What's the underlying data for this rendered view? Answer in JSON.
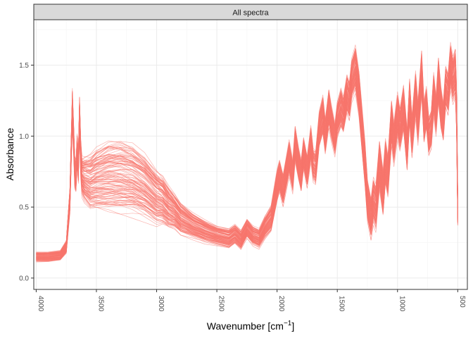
{
  "facet": {
    "strip_label": "All spectra"
  },
  "chart_data": {
    "type": "line",
    "title": "",
    "facet_label": "All spectra",
    "xlabel": "Wavenumber [cm",
    "xlabel_superscript": "−1",
    "xlabel_suffix": "]",
    "ylabel": "Absorbance",
    "xlim": [
      4020,
      420
    ],
    "ylim": [
      -0.08,
      1.82
    ],
    "x_reversed": true,
    "x_ticks": [
      4000,
      3500,
      3000,
      2500,
      2000,
      1500,
      1000,
      500
    ],
    "x_tick_labels": [
      "4000",
      "3500",
      "3000",
      "2500",
      "2000",
      "1500",
      "1000",
      "500"
    ],
    "y_ticks": [
      0.0,
      0.5,
      1.0,
      1.5
    ],
    "y_tick_labels": [
      "0.0",
      "0.5",
      "1.0",
      "1.5"
    ],
    "grid": true,
    "legend": "none",
    "series_color": "#F8766D",
    "series_count": 120,
    "representative_spectrum": {
      "x": [
        4000,
        3900,
        3800,
        3750,
        3720,
        3700,
        3690,
        3680,
        3670,
        3660,
        3650,
        3640,
        3630,
        3620,
        3600,
        3550,
        3500,
        3400,
        3300,
        3200,
        3100,
        3000,
        2950,
        2900,
        2850,
        2800,
        2700,
        2600,
        2500,
        2400,
        2350,
        2300,
        2250,
        2200,
        2150,
        2100,
        2050,
        2000,
        1980,
        1950,
        1900,
        1870,
        1850,
        1820,
        1800,
        1780,
        1750,
        1720,
        1700,
        1680,
        1650,
        1620,
        1600,
        1570,
        1550,
        1520,
        1500,
        1470,
        1450,
        1420,
        1400,
        1380,
        1350,
        1320,
        1300,
        1270,
        1250,
        1220,
        1200,
        1180,
        1150,
        1120,
        1100,
        1080,
        1050,
        1030,
        1000,
        980,
        950,
        920,
        900,
        880,
        850,
        830,
        800,
        780,
        760,
        740,
        720,
        700,
        680,
        660,
        640,
        620,
        600,
        580,
        560,
        540,
        520,
        510,
        500
      ],
      "y": [
        0.15,
        0.15,
        0.16,
        0.22,
        0.55,
        1.2,
        1.0,
        0.75,
        0.72,
        0.9,
        0.78,
        1.15,
        0.85,
        0.72,
        0.7,
        0.68,
        0.7,
        0.72,
        0.72,
        0.7,
        0.65,
        0.57,
        0.55,
        0.5,
        0.47,
        0.42,
        0.37,
        0.33,
        0.3,
        0.28,
        0.31,
        0.27,
        0.35,
        0.3,
        0.28,
        0.36,
        0.42,
        0.65,
        0.72,
        0.62,
        0.85,
        0.72,
        0.95,
        0.8,
        0.72,
        0.88,
        0.75,
        0.95,
        0.8,
        0.78,
        1.05,
        1.15,
        1.0,
        1.2,
        1.1,
        0.98,
        1.12,
        1.2,
        1.15,
        1.3,
        1.25,
        1.4,
        1.48,
        1.3,
        1.1,
        0.8,
        0.55,
        0.42,
        0.55,
        0.5,
        0.8,
        0.6,
        0.82,
        0.72,
        1.1,
        0.95,
        1.15,
        1.05,
        1.2,
        0.9,
        1.25,
        1.0,
        1.3,
        1.1,
        1.45,
        1.1,
        1.2,
        1.0,
        1.05,
        1.3,
        1.15,
        1.4,
        1.2,
        1.1,
        1.35,
        1.3,
        1.5,
        1.4,
        1.45,
        1.2,
        0.5
      ],
      "spread_y": [
        0.03,
        0.03,
        0.03,
        0.04,
        0.08,
        0.12,
        0.1,
        0.1,
        0.1,
        0.1,
        0.1,
        0.12,
        0.12,
        0.12,
        0.14,
        0.17,
        0.19,
        0.22,
        0.23,
        0.22,
        0.2,
        0.17,
        0.15,
        0.13,
        0.11,
        0.1,
        0.08,
        0.07,
        0.06,
        0.06,
        0.06,
        0.06,
        0.06,
        0.06,
        0.06,
        0.07,
        0.08,
        0.1,
        0.1,
        0.1,
        0.11,
        0.1,
        0.11,
        0.1,
        0.1,
        0.1,
        0.1,
        0.11,
        0.1,
        0.1,
        0.11,
        0.12,
        0.11,
        0.12,
        0.11,
        0.1,
        0.11,
        0.12,
        0.11,
        0.12,
        0.12,
        0.13,
        0.14,
        0.14,
        0.14,
        0.14,
        0.13,
        0.13,
        0.14,
        0.14,
        0.15,
        0.14,
        0.14,
        0.13,
        0.14,
        0.13,
        0.14,
        0.13,
        0.14,
        0.13,
        0.14,
        0.13,
        0.14,
        0.13,
        0.14,
        0.13,
        0.13,
        0.12,
        0.12,
        0.13,
        0.12,
        0.14,
        0.13,
        0.12,
        0.13,
        0.13,
        0.14,
        0.14,
        0.15,
        0.15,
        0.12
      ]
    }
  }
}
